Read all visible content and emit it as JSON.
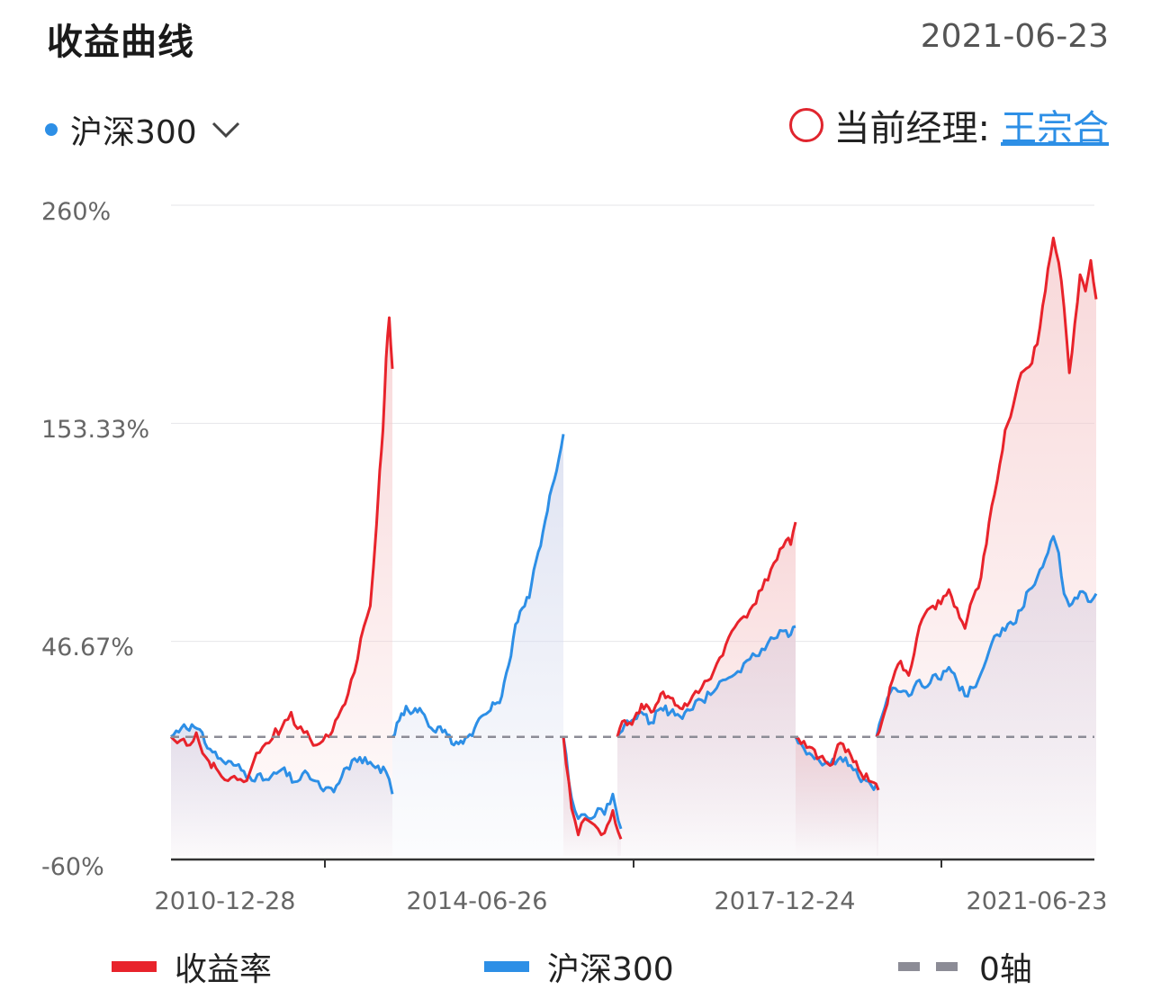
{
  "header": {
    "title": "收益曲线",
    "date": "2021-06-23"
  },
  "selector": {
    "label": "沪深300",
    "dot_color": "#2d8fe6",
    "icon": "chevron-down-icon"
  },
  "manager": {
    "prefix": "当前经理:",
    "name": "王宗合",
    "marker_color": "#e0252e"
  },
  "chart_data": {
    "type": "line",
    "y_ticks": [
      "260%",
      "153.33%",
      "46.67%",
      "-60%"
    ],
    "x_ticks": [
      "2010-12-28",
      "2014-06-26",
      "2017-12-24",
      "2021-06-23"
    ],
    "ylim": [
      -60,
      260
    ],
    "zero_axis_label": "0轴",
    "series": [
      {
        "name": "收益率",
        "color": "#e8232b",
        "segments": [
          [
            [
              0,
              0
            ],
            [
              0.02,
              -3
            ],
            [
              0.04,
              -1
            ],
            [
              0.06,
              -4
            ],
            [
              0.08,
              2
            ],
            [
              0.1,
              -8
            ],
            [
              0.12,
              -12
            ],
            [
              0.15,
              -17
            ],
            [
              0.17,
              -21
            ],
            [
              0.19,
              -20
            ],
            [
              0.21,
              -21
            ],
            [
              0.23,
              -22
            ],
            [
              0.25,
              -17
            ],
            [
              0.27,
              -8
            ],
            [
              0.29,
              -5
            ],
            [
              0.31,
              -3
            ],
            [
              0.33,
              4
            ],
            [
              0.34,
              1
            ],
            [
              0.36,
              8
            ],
            [
              0.38,
              12
            ],
            [
              0.4,
              4
            ],
            [
              0.42,
              2
            ],
            [
              0.44,
              -1
            ],
            [
              0.46,
              -4
            ],
            [
              0.48,
              -2
            ],
            [
              0.5,
              0
            ],
            [
              0.52,
              8
            ],
            [
              0.55,
              16
            ],
            [
              0.57,
              28
            ],
            [
              0.59,
              38
            ],
            [
              0.61,
              54
            ],
            [
              0.63,
              64
            ],
            [
              0.65,
              104
            ],
            [
              0.66,
              130
            ],
            [
              0.67,
              150
            ],
            [
              0.68,
              185
            ],
            [
              0.69,
              205
            ],
            [
              0.7,
              180
            ]
          ],
          [
            [
              0,
              0
            ],
            [
              0.1,
              -35
            ],
            [
              0.18,
              -48
            ],
            [
              0.26,
              -40
            ],
            [
              0.34,
              -42
            ],
            [
              0.42,
              -45
            ],
            [
              0.5,
              -47
            ],
            [
              0.6,
              -36
            ],
            [
              0.7,
              -50
            ]
          ],
          [
            [
              0,
              0
            ],
            [
              0.03,
              8
            ],
            [
              0.06,
              6
            ],
            [
              0.1,
              16
            ],
            [
              0.14,
              12
            ],
            [
              0.18,
              21
            ],
            [
              0.22,
              19
            ],
            [
              0.26,
              14
            ],
            [
              0.3,
              17
            ],
            [
              0.35,
              24
            ],
            [
              0.4,
              32
            ],
            [
              0.45,
              45
            ],
            [
              0.5,
              56
            ],
            [
              0.55,
              62
            ],
            [
              0.6,
              72
            ],
            [
              0.65,
              85
            ],
            [
              0.7,
              96
            ],
            [
              0.72,
              94
            ],
            [
              0.74,
              105
            ]
          ],
          [
            [
              0,
              0
            ],
            [
              0.08,
              -5
            ],
            [
              0.14,
              -10
            ],
            [
              0.2,
              -14
            ],
            [
              0.26,
              -3
            ],
            [
              0.32,
              -9
            ],
            [
              0.38,
              -18
            ],
            [
              0.44,
              -22
            ],
            [
              0.48,
              -26
            ]
          ],
          [
            [
              0,
              0
            ],
            [
              0.03,
              12
            ],
            [
              0.06,
              28
            ],
            [
              0.09,
              37
            ],
            [
              0.12,
              30
            ],
            [
              0.15,
              48
            ],
            [
              0.18,
              60
            ],
            [
              0.21,
              64
            ],
            [
              0.24,
              65
            ],
            [
              0.27,
              72
            ],
            [
              0.3,
              63
            ],
            [
              0.33,
              53
            ],
            [
              0.36,
              68
            ],
            [
              0.39,
              78
            ],
            [
              0.42,
              105
            ],
            [
              0.45,
              125
            ],
            [
              0.48,
              150
            ],
            [
              0.51,
              162
            ],
            [
              0.54,
              178
            ],
            [
              0.57,
              181
            ],
            [
              0.6,
              192
            ],
            [
              0.63,
              218
            ],
            [
              0.66,
              244
            ],
            [
              0.68,
              232
            ],
            [
              0.7,
              210
            ],
            [
              0.72,
              178
            ],
            [
              0.74,
              202
            ],
            [
              0.76,
              226
            ],
            [
              0.78,
              218
            ],
            [
              0.8,
              233
            ],
            [
              0.82,
              214
            ]
          ]
        ]
      },
      {
        "name": "沪深300",
        "color": "#2d8fe6",
        "segments": [
          [
            [
              0,
              0
            ],
            [
              0.02,
              6
            ],
            [
              0.04,
              4
            ],
            [
              0.06,
              -6
            ],
            [
              0.08,
              -12
            ],
            [
              0.1,
              -14
            ],
            [
              0.12,
              -19
            ],
            [
              0.15,
              -21
            ],
            [
              0.17,
              -16
            ],
            [
              0.19,
              -22
            ],
            [
              0.21,
              -18
            ],
            [
              0.23,
              -25
            ],
            [
              0.25,
              -27
            ],
            [
              0.27,
              -15
            ],
            [
              0.29,
              -10
            ],
            [
              0.31,
              -14
            ],
            [
              0.33,
              -17
            ],
            [
              0.34,
              -28
            ]
          ],
          [
            [
              0,
              0
            ],
            [
              0.02,
              8
            ],
            [
              0.04,
              15
            ],
            [
              0.06,
              12
            ],
            [
              0.08,
              14
            ],
            [
              0.1,
              8
            ],
            [
              0.12,
              3
            ],
            [
              0.14,
              5
            ],
            [
              0.16,
              1
            ],
            [
              0.18,
              -4
            ],
            [
              0.2,
              -2
            ],
            [
              0.22,
              0
            ],
            [
              0.24,
              4
            ],
            [
              0.26,
              10
            ],
            [
              0.28,
              12
            ],
            [
              0.3,
              16
            ],
            [
              0.32,
              20
            ],
            [
              0.34,
              35
            ],
            [
              0.36,
              55
            ],
            [
              0.38,
              63
            ],
            [
              0.4,
              68
            ],
            [
              0.42,
              86
            ],
            [
              0.44,
              100
            ],
            [
              0.46,
              118
            ],
            [
              0.48,
              130
            ],
            [
              0.5,
              148
            ]
          ],
          [
            [
              0,
              0
            ],
            [
              0.1,
              -30
            ],
            [
              0.18,
              -40
            ],
            [
              0.26,
              -38
            ],
            [
              0.34,
              -40
            ],
            [
              0.42,
              -35
            ],
            [
              0.5,
              -38
            ],
            [
              0.6,
              -28
            ],
            [
              0.7,
              -45
            ]
          ],
          [
            [
              0,
              0
            ],
            [
              0.03,
              6
            ],
            [
              0.06,
              8
            ],
            [
              0.1,
              12
            ],
            [
              0.14,
              7
            ],
            [
              0.18,
              14
            ],
            [
              0.22,
              12
            ],
            [
              0.26,
              10
            ],
            [
              0.3,
              13
            ],
            [
              0.35,
              18
            ],
            [
              0.4,
              22
            ],
            [
              0.45,
              28
            ],
            [
              0.5,
              32
            ],
            [
              0.55,
              38
            ],
            [
              0.6,
              43
            ],
            [
              0.65,
              48
            ],
            [
              0.7,
              52
            ],
            [
              0.72,
              50
            ],
            [
              0.74,
              54
            ]
          ],
          [
            [
              0,
              0
            ],
            [
              0.08,
              -8
            ],
            [
              0.14,
              -12
            ],
            [
              0.2,
              -14
            ],
            [
              0.26,
              -10
            ],
            [
              0.32,
              -14
            ],
            [
              0.38,
              -22
            ],
            [
              0.44,
              -24
            ],
            [
              0.48,
              -26
            ]
          ],
          [
            [
              0,
              0
            ],
            [
              0.03,
              14
            ],
            [
              0.06,
              24
            ],
            [
              0.09,
              22
            ],
            [
              0.12,
              20
            ],
            [
              0.15,
              27
            ],
            [
              0.18,
              24
            ],
            [
              0.21,
              30
            ],
            [
              0.24,
              28
            ],
            [
              0.27,
              34
            ],
            [
              0.3,
              27
            ],
            [
              0.33,
              20
            ],
            [
              0.36,
              24
            ],
            [
              0.39,
              31
            ],
            [
              0.42,
              42
            ],
            [
              0.45,
              50
            ],
            [
              0.48,
              52
            ],
            [
              0.51,
              55
            ],
            [
              0.54,
              62
            ],
            [
              0.57,
              72
            ],
            [
              0.6,
              78
            ],
            [
              0.63,
              87
            ],
            [
              0.66,
              98
            ],
            [
              0.68,
              90
            ],
            [
              0.7,
              70
            ],
            [
              0.72,
              64
            ],
            [
              0.74,
              68
            ],
            [
              0.76,
              71
            ],
            [
              0.78,
              70
            ],
            [
              0.8,
              66
            ],
            [
              0.82,
              70
            ]
          ]
        ]
      }
    ],
    "legend": [
      "收益率",
      "沪深300",
      "0轴"
    ],
    "zero_line_color": "#8c8c96"
  }
}
